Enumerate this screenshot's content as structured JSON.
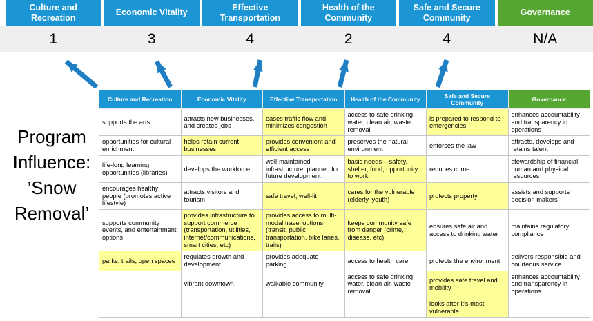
{
  "colors": {
    "header_blue": "#1b95d3",
    "header_green": "#56a632",
    "score_bg": "#efefef",
    "highlight_yellow": "#ffff99",
    "arrow_blue": "#1f7ec4",
    "table_border": "#c6c6c6"
  },
  "title": "Program Influence: ’Snow Removal’",
  "summary_columns": [
    {
      "label": "Culture and Recreation",
      "score": "1",
      "color": "blue"
    },
    {
      "label": "Economic Vitality",
      "score": "3",
      "color": "blue"
    },
    {
      "label": "Effective Transportation",
      "score": "4",
      "color": "blue"
    },
    {
      "label": "Health of the Community",
      "score": "2",
      "color": "blue"
    },
    {
      "label": "Safe and Secure Community",
      "score": "4",
      "color": "blue"
    },
    {
      "label": "Governance",
      "score": "N/A",
      "color": "green"
    }
  ],
  "matrix": {
    "headers": [
      {
        "label": "Culture and Recreation",
        "color": "blue"
      },
      {
        "label": "Economic Vitality",
        "color": "blue"
      },
      {
        "label": "Effective Transportation",
        "color": "blue"
      },
      {
        "label": "Health of the Community",
        "color": "blue"
      },
      {
        "label": "Safe and Secure Community",
        "color": "blue"
      },
      {
        "label": "Governance",
        "color": "green"
      }
    ],
    "rows": [
      [
        {
          "text": "supports the arts",
          "highlight": false
        },
        {
          "text": "attracts new businesses, and creates jobs",
          "highlight": false
        },
        {
          "text": "eases traffic flow and minimizes congestion",
          "highlight": true
        },
        {
          "text": "access to safe drinking water, clean air, waste removal",
          "highlight": false
        },
        {
          "text": "is prepared to respond to emergencies",
          "highlight": true
        },
        {
          "text": "enhances accountability and transparency in operations",
          "highlight": false
        }
      ],
      [
        {
          "text": "opportunities for cultural enrichment",
          "highlight": false
        },
        {
          "text": "helps retain current businesses",
          "highlight": true
        },
        {
          "text": "provides convenient and efficient access",
          "highlight": true
        },
        {
          "text": "preserves the natural environment",
          "highlight": false
        },
        {
          "text": "enforces the law",
          "highlight": false
        },
        {
          "text": "attracts, develops and retains talent",
          "highlight": false
        }
      ],
      [
        {
          "text": "life-long learning opportunities (libraries)",
          "highlight": false
        },
        {
          "text": "develops the workforce",
          "highlight": false
        },
        {
          "text": "well-maintained infrastructure, planned for future development",
          "highlight": false
        },
        {
          "text": "basic needs – safety, shelter, food, opportunity to work",
          "highlight": true
        },
        {
          "text": "reduces crime",
          "highlight": false
        },
        {
          "text": "stewardship of financial, human and physical resources",
          "highlight": false
        }
      ],
      [
        {
          "text": "encourages healthy people (promotes active lifestyle)",
          "highlight": false
        },
        {
          "text": "attracts visitors and tourism",
          "highlight": false
        },
        {
          "text": "safe travel, well-lit",
          "highlight": true
        },
        {
          "text": "cares for the vulnerable (elderly, youth)",
          "highlight": true
        },
        {
          "text": "protects property",
          "highlight": true
        },
        {
          "text": "assists and supports decision makers",
          "highlight": false
        }
      ],
      [
        {
          "text": "supports community events, and entertainment options",
          "highlight": false
        },
        {
          "text": "provides infrastructure to support commerce (transportation, utilities, internet/communications, smart cities, etc)",
          "highlight": true
        },
        {
          "text": "provides access to multi-modal travel options (transit, public transportation, bike lanes, trails)",
          "highlight": true
        },
        {
          "text": "keeps community safe from danger (crime, disease, etc)",
          "highlight": true
        },
        {
          "text": "ensures safe air and access to drinking water",
          "highlight": false
        },
        {
          "text": "maintains regulatory compliance",
          "highlight": false
        }
      ],
      [
        {
          "text": "parks, trails, open spaces",
          "highlight": true
        },
        {
          "text": "regulates growth and development",
          "highlight": false
        },
        {
          "text": "provides adequate parking",
          "highlight": false
        },
        {
          "text": "access to health care",
          "highlight": false
        },
        {
          "text": "protects the environment",
          "highlight": false
        },
        {
          "text": "delivers responsible and courteous service",
          "highlight": false
        }
      ],
      [
        {
          "text": "",
          "highlight": false
        },
        {
          "text": "vibrant downtown",
          "highlight": false
        },
        {
          "text": "walkable community",
          "highlight": false
        },
        {
          "text": "access to safe drinking water, clean air, waste removal",
          "highlight": false
        },
        {
          "text": "provides safe travel and mobility",
          "highlight": true
        },
        {
          "text": "enhances accountability and transparency in operations",
          "highlight": false
        }
      ],
      [
        {
          "text": "",
          "highlight": false
        },
        {
          "text": "",
          "highlight": false
        },
        {
          "text": "",
          "highlight": false
        },
        {
          "text": "",
          "highlight": false
        },
        {
          "text": "looks after it's most vulnerable",
          "highlight": true
        },
        {
          "text": "",
          "highlight": false
        }
      ]
    ]
  }
}
